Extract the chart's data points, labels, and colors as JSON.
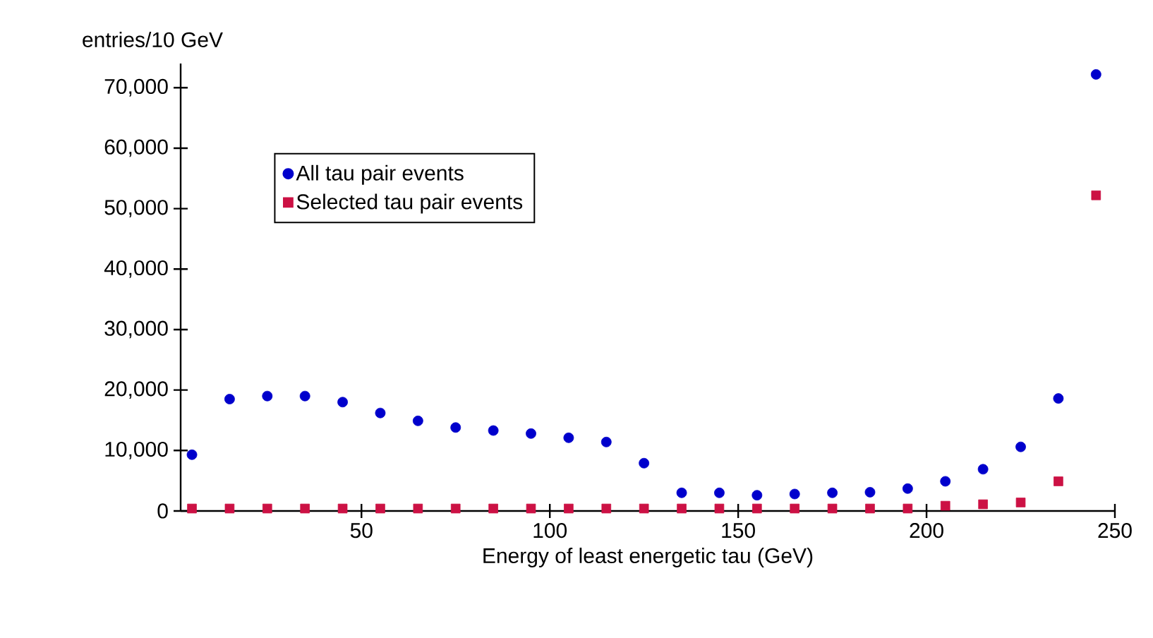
{
  "chart_data": {
    "type": "scatter",
    "xlabel": "Energy of least energetic tau (GeV)",
    "ylabel": "entries/10 GeV",
    "x": [
      5,
      15,
      25,
      35,
      45,
      55,
      65,
      75,
      85,
      95,
      105,
      115,
      125,
      135,
      145,
      155,
      165,
      175,
      185,
      195,
      205,
      215,
      225,
      235,
      245
    ],
    "series": [
      {
        "name": "All tau pair events",
        "color": "#0000cc",
        "marker": "circle",
        "values": [
          9300,
          18500,
          19000,
          19000,
          18000,
          16200,
          14900,
          13800,
          13300,
          12800,
          12100,
          11400,
          7900,
          3000,
          3000,
          2600,
          2800,
          3000,
          3100,
          3700,
          4900,
          6900,
          10600,
          18600,
          72200
        ]
      },
      {
        "name": "Selected tau pair events",
        "color": "#cc1144",
        "marker": "square",
        "values": [
          400,
          400,
          400,
          400,
          400,
          400,
          400,
          400,
          400,
          400,
          400,
          400,
          400,
          400,
          400,
          400,
          400,
          400,
          400,
          400,
          860,
          1100,
          1400,
          4900,
          52200
        ]
      }
    ],
    "xlim": [
      2,
      250
    ],
    "xticks": [
      50,
      100,
      150,
      200,
      250
    ],
    "ylim": [
      0,
      74000
    ],
    "yticks": [
      {
        "value": 0,
        "label": "0"
      },
      {
        "value": 10000,
        "label": "10,000"
      },
      {
        "value": 20000,
        "label": "20,000"
      },
      {
        "value": 30000,
        "label": "30,000"
      },
      {
        "value": 40000,
        "label": "40,000"
      },
      {
        "value": 50000,
        "label": "50,000"
      },
      {
        "value": 60000,
        "label": "60,000"
      },
      {
        "value": 70000,
        "label": "70,000"
      }
    ],
    "legend": "top left",
    "grid": false
  }
}
